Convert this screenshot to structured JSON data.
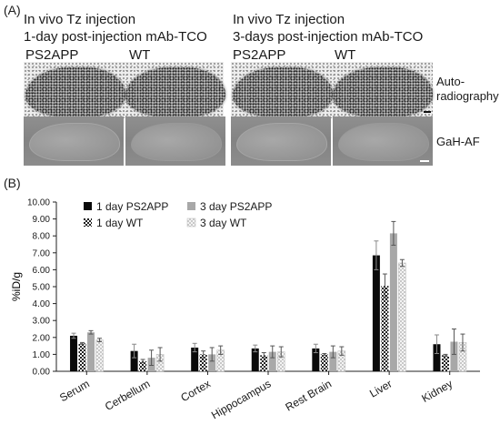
{
  "panel_a": {
    "label": "(A)",
    "left_title_line1": "In vivo Tz injection",
    "left_title_line2": "1-day post-injection mAb-TCO",
    "right_title_line1": "In vivo Tz injection",
    "right_title_line2": "3-days post-injection mAb-TCO",
    "columns": [
      "PS2APP",
      "WT",
      "PS2APP",
      "WT"
    ],
    "row_label_autorad_line1": "Auto-",
    "row_label_autorad_line2": "radiography",
    "row_label_fluor": "GaH-AF"
  },
  "panel_b": {
    "label": "(B)"
  },
  "colors": {
    "day1_ps2app": "#0a0a0a",
    "day1_wt": "#1e1e1e",
    "day3_ps2app": "#a8a8a8",
    "day3_wt": "#d8d8d8"
  },
  "chart_data": {
    "type": "bar",
    "ylabel": "%iD/g",
    "ylim": [
      0,
      10
    ],
    "yticks": [
      "0.00",
      "1.00",
      "2.00",
      "3.00",
      "4.00",
      "5.00",
      "6.00",
      "7.00",
      "8.00",
      "9.00",
      "10.00"
    ],
    "categories": [
      "Serum",
      "Cerbellum",
      "Cortex",
      "Hippocampus",
      "Rest Brain",
      "Liver",
      "Kidney"
    ],
    "legend_position": "top-left",
    "series": [
      {
        "name": "1 day PS2APP",
        "pattern": "solid-black",
        "values": [
          2.1,
          1.2,
          1.4,
          1.35,
          1.35,
          6.85,
          1.6
        ],
        "errors": [
          0.15,
          0.4,
          0.25,
          0.2,
          0.25,
          0.85,
          0.55
        ]
      },
      {
        "name": "1 day WT",
        "pattern": "dark-checker",
        "values": [
          1.65,
          0.6,
          1.0,
          0.95,
          1.0,
          5.05,
          0.95
        ],
        "errors": [
          0.05,
          0.1,
          0.2,
          0.15,
          0.05,
          0.7,
          0.05
        ]
      },
      {
        "name": "3 day PS2APP",
        "pattern": "solid-gray",
        "values": [
          2.3,
          0.8,
          1.0,
          1.15,
          1.15,
          8.15,
          1.75
        ],
        "errors": [
          0.1,
          0.45,
          0.4,
          0.35,
          0.35,
          0.7,
          0.75
        ]
      },
      {
        "name": "3 day WT",
        "pattern": "light-checker",
        "values": [
          1.85,
          1.0,
          1.25,
          1.15,
          1.2,
          6.4,
          1.7
        ],
        "errors": [
          0.1,
          0.4,
          0.25,
          0.3,
          0.25,
          0.2,
          0.5
        ]
      }
    ]
  }
}
